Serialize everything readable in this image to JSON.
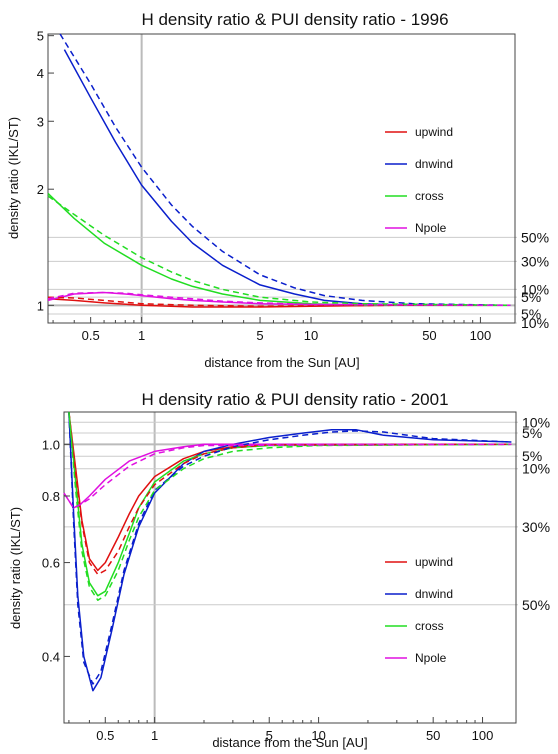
{
  "chart_data": [
    {
      "type": "line",
      "title": "H density ratio & PUI density ratio - 1996",
      "xlabel": "distance from the Sun [AU]",
      "ylabel": "density ratio (IKL/ST)",
      "xscale": "log",
      "yscale": "log",
      "xlim": [
        0.28,
        160
      ],
      "ylim": [
        0.9,
        5.05
      ],
      "xticks": [
        {
          "v": 0.5,
          "label": "0.5"
        },
        {
          "v": 1,
          "label": "1"
        },
        {
          "v": 5,
          "label": "5"
        },
        {
          "v": 10,
          "label": "10"
        },
        {
          "v": 50,
          "label": "50"
        },
        {
          "v": 100,
          "label": "100"
        }
      ],
      "yticks": [
        {
          "v": 1,
          "label": "1"
        },
        {
          "v": 2,
          "label": "2"
        },
        {
          "v": 3,
          "label": "3"
        },
        {
          "v": 4,
          "label": "4"
        },
        {
          "v": 5,
          "label": "5"
        }
      ],
      "right_labels": [
        {
          "v": 1.5,
          "label": "50%"
        },
        {
          "v": 1.3,
          "label": "30%"
        },
        {
          "v": 1.1,
          "label": "10%"
        },
        {
          "v": 1.05,
          "label": "5%"
        },
        {
          "v": 0.95,
          "label": "5%"
        },
        {
          "v": 0.9,
          "label": "10%"
        }
      ],
      "vline": 1,
      "legend_position": "right",
      "series": [
        {
          "name": "upwind",
          "color": "#e01010",
          "style": "solid",
          "points": [
            [
              0.28,
              1.04
            ],
            [
              0.4,
              1.03
            ],
            [
              0.6,
              1.015
            ],
            [
              1,
              1.0
            ],
            [
              2,
              0.99
            ],
            [
              5,
              0.99
            ],
            [
              10,
              0.995
            ],
            [
              30,
              1.0
            ],
            [
              150,
              1.0
            ]
          ]
        },
        {
          "name": "dnwind",
          "color": "#0a1fcc",
          "style": "solid",
          "points": [
            [
              0.35,
              4.6
            ],
            [
              0.5,
              3.45
            ],
            [
              0.7,
              2.65
            ],
            [
              1,
              2.05
            ],
            [
              1.5,
              1.65
            ],
            [
              2,
              1.45
            ],
            [
              3,
              1.27
            ],
            [
              5,
              1.13
            ],
            [
              8,
              1.07
            ],
            [
              12,
              1.03
            ],
            [
              20,
              1.01
            ],
            [
              40,
              1.0
            ],
            [
              150,
              1.0
            ]
          ]
        },
        {
          "name": "cross",
          "color": "#22dd22",
          "style": "solid",
          "points": [
            [
              0.28,
              1.95
            ],
            [
              0.4,
              1.68
            ],
            [
              0.6,
              1.45
            ],
            [
              1,
              1.27
            ],
            [
              1.5,
              1.17
            ],
            [
              2,
              1.12
            ],
            [
              3,
              1.07
            ],
            [
              5,
              1.03
            ],
            [
              10,
              1.01
            ],
            [
              20,
              1.0
            ],
            [
              150,
              1.0
            ]
          ]
        },
        {
          "name": "Npole",
          "color": "#e010e0",
          "style": "solid",
          "points": [
            [
              0.28,
              1.03
            ],
            [
              0.4,
              1.07
            ],
            [
              0.6,
              1.08
            ],
            [
              0.8,
              1.07
            ],
            [
              1,
              1.06
            ],
            [
              1.5,
              1.04
            ],
            [
              2,
              1.03
            ],
            [
              3,
              1.02
            ],
            [
              5,
              1.01
            ],
            [
              10,
              1.005
            ],
            [
              150,
              1.0
            ]
          ]
        },
        {
          "name": "",
          "color": "#e01010",
          "style": "dashed",
          "points": [
            [
              0.28,
              1.05
            ],
            [
              0.4,
              1.045
            ],
            [
              0.6,
              1.03
            ],
            [
              1,
              1.01
            ],
            [
              2,
              1.0
            ],
            [
              5,
              0.995
            ],
            [
              10,
              0.997
            ],
            [
              30,
              1.0
            ],
            [
              150,
              1.0
            ]
          ]
        },
        {
          "name": "",
          "color": "#0a1fcc",
          "style": "dashed",
          "points": [
            [
              0.33,
              5.05
            ],
            [
              0.5,
              3.75
            ],
            [
              0.7,
              2.9
            ],
            [
              1,
              2.28
            ],
            [
              1.5,
              1.82
            ],
            [
              2,
              1.6
            ],
            [
              3,
              1.38
            ],
            [
              5,
              1.2
            ],
            [
              8,
              1.11
            ],
            [
              12,
              1.06
            ],
            [
              20,
              1.03
            ],
            [
              40,
              1.01
            ],
            [
              150,
              1.0
            ]
          ]
        },
        {
          "name": "",
          "color": "#22dd22",
          "style": "dashed",
          "points": [
            [
              0.28,
              1.92
            ],
            [
              0.4,
              1.72
            ],
            [
              0.6,
              1.52
            ],
            [
              1,
              1.33
            ],
            [
              1.5,
              1.22
            ],
            [
              2,
              1.16
            ],
            [
              3,
              1.1
            ],
            [
              5,
              1.05
            ],
            [
              10,
              1.02
            ],
            [
              20,
              1.01
            ],
            [
              150,
              1.0
            ]
          ]
        },
        {
          "name": "",
          "color": "#e010e0",
          "style": "dashed",
          "points": [
            [
              0.28,
              1.04
            ],
            [
              0.4,
              1.075
            ],
            [
              0.6,
              1.08
            ],
            [
              0.8,
              1.075
            ],
            [
              1,
              1.065
            ],
            [
              1.5,
              1.05
            ],
            [
              2,
              1.04
            ],
            [
              3,
              1.025
            ],
            [
              5,
              1.015
            ],
            [
              10,
              1.005
            ],
            [
              150,
              1.0
            ]
          ]
        }
      ]
    },
    {
      "type": "line",
      "title": "H density ratio & PUI density ratio - 2001",
      "xlabel": "distance from the Sun [AU]",
      "ylabel": "density ratio (IKL/ST)",
      "xscale": "log",
      "yscale": "log",
      "xlim": [
        0.28,
        160
      ],
      "ylim": [
        0.3,
        1.15
      ],
      "xticks": [
        {
          "v": 0.5,
          "label": "0.5"
        },
        {
          "v": 1,
          "label": "1"
        },
        {
          "v": 5,
          "label": "5"
        },
        {
          "v": 10,
          "label": "10"
        },
        {
          "v": 50,
          "label": "50"
        },
        {
          "v": 100,
          "label": "100"
        }
      ],
      "yticks": [
        {
          "v": 0.4,
          "label": "0.4"
        },
        {
          "v": 0.6,
          "label": "0.6"
        },
        {
          "v": 0.8,
          "label": "0.8"
        },
        {
          "v": 1.0,
          "label": "1.0"
        }
      ],
      "right_labels": [
        {
          "v": 1.1,
          "label": "10%"
        },
        {
          "v": 1.05,
          "label": "5%"
        },
        {
          "v": 0.95,
          "label": "5%"
        },
        {
          "v": 0.9,
          "label": "10%"
        },
        {
          "v": 0.7,
          "label": "30%"
        },
        {
          "v": 0.5,
          "label": "50%"
        }
      ],
      "vline": 1,
      "legend_position": "right",
      "series": [
        {
          "name": "upwind",
          "color": "#e01010",
          "style": "solid",
          "points": [
            [
              0.3,
              1.15
            ],
            [
              0.33,
              0.9
            ],
            [
              0.36,
              0.72
            ],
            [
              0.4,
              0.61
            ],
            [
              0.45,
              0.58
            ],
            [
              0.5,
              0.6
            ],
            [
              0.6,
              0.67
            ],
            [
              0.7,
              0.74
            ],
            [
              0.8,
              0.8
            ],
            [
              1,
              0.87
            ],
            [
              1.5,
              0.94
            ],
            [
              2,
              0.97
            ],
            [
              3,
              0.99
            ],
            [
              5,
              1.0
            ],
            [
              150,
              1.0
            ]
          ]
        },
        {
          "name": "dnwind",
          "color": "#0a1fcc",
          "style": "solid",
          "points": [
            [
              0.3,
              1.15
            ],
            [
              0.32,
              0.75
            ],
            [
              0.34,
              0.52
            ],
            [
              0.37,
              0.4
            ],
            [
              0.42,
              0.345
            ],
            [
              0.47,
              0.365
            ],
            [
              0.55,
              0.45
            ],
            [
              0.65,
              0.57
            ],
            [
              0.8,
              0.7
            ],
            [
              1,
              0.81
            ],
            [
              1.5,
              0.92
            ],
            [
              2,
              0.97
            ],
            [
              3,
              1.0
            ],
            [
              5,
              1.03
            ],
            [
              8,
              1.05
            ],
            [
              12,
              1.065
            ],
            [
              17,
              1.065
            ],
            [
              25,
              1.04
            ],
            [
              50,
              1.02
            ],
            [
              150,
              1.01
            ]
          ]
        },
        {
          "name": "cross",
          "color": "#22dd22",
          "style": "solid",
          "points": [
            [
              0.3,
              1.15
            ],
            [
              0.33,
              0.85
            ],
            [
              0.36,
              0.65
            ],
            [
              0.4,
              0.55
            ],
            [
              0.45,
              0.52
            ],
            [
              0.5,
              0.53
            ],
            [
              0.6,
              0.6
            ],
            [
              0.7,
              0.68
            ],
            [
              0.8,
              0.76
            ],
            [
              1,
              0.85
            ],
            [
              1.5,
              0.93
            ],
            [
              2,
              0.96
            ],
            [
              3,
              0.985
            ],
            [
              5,
              0.995
            ],
            [
              150,
              1.0
            ]
          ]
        },
        {
          "name": "Npole",
          "color": "#e010e0",
          "style": "solid",
          "points": [
            [
              0.28,
              0.81
            ],
            [
              0.32,
              0.76
            ],
            [
              0.35,
              0.77
            ],
            [
              0.4,
              0.8
            ],
            [
              0.5,
              0.86
            ],
            [
              0.7,
              0.93
            ],
            [
              1,
              0.97
            ],
            [
              1.5,
              0.99
            ],
            [
              2,
              1.0
            ],
            [
              150,
              1.0
            ]
          ]
        },
        {
          "name": "",
          "color": "#e01010",
          "style": "dashed",
          "points": [
            [
              0.3,
              1.15
            ],
            [
              0.33,
              0.88
            ],
            [
              0.36,
              0.71
            ],
            [
              0.4,
              0.6
            ],
            [
              0.45,
              0.57
            ],
            [
              0.5,
              0.58
            ],
            [
              0.6,
              0.63
            ],
            [
              0.7,
              0.7
            ],
            [
              0.8,
              0.76
            ],
            [
              1,
              0.84
            ],
            [
              1.5,
              0.92
            ],
            [
              2,
              0.96
            ],
            [
              3,
              0.985
            ],
            [
              5,
              0.998
            ],
            [
              150,
              1.0
            ]
          ]
        },
        {
          "name": "",
          "color": "#0a1fcc",
          "style": "dashed",
          "points": [
            [
              0.3,
              1.15
            ],
            [
              0.32,
              0.72
            ],
            [
              0.34,
              0.5
            ],
            [
              0.37,
              0.39
            ],
            [
              0.42,
              0.355
            ],
            [
              0.47,
              0.375
            ],
            [
              0.55,
              0.46
            ],
            [
              0.65,
              0.58
            ],
            [
              0.8,
              0.71
            ],
            [
              1,
              0.82
            ],
            [
              1.5,
              0.91
            ],
            [
              2,
              0.95
            ],
            [
              3,
              0.99
            ],
            [
              5,
              1.02
            ],
            [
              8,
              1.04
            ],
            [
              12,
              1.055
            ],
            [
              17,
              1.06
            ],
            [
              25,
              1.055
            ],
            [
              35,
              1.04
            ],
            [
              50,
              1.025
            ],
            [
              150,
              1.01
            ]
          ]
        },
        {
          "name": "",
          "color": "#22dd22",
          "style": "dashed",
          "points": [
            [
              0.3,
              1.15
            ],
            [
              0.33,
              0.82
            ],
            [
              0.36,
              0.63
            ],
            [
              0.4,
              0.54
            ],
            [
              0.45,
              0.51
            ],
            [
              0.5,
              0.52
            ],
            [
              0.6,
              0.58
            ],
            [
              0.7,
              0.66
            ],
            [
              0.8,
              0.73
            ],
            [
              1,
              0.82
            ],
            [
              1.5,
              0.9
            ],
            [
              2,
              0.94
            ],
            [
              3,
              0.97
            ],
            [
              5,
              0.985
            ],
            [
              10,
              0.995
            ],
            [
              150,
              1.0
            ]
          ]
        },
        {
          "name": "",
          "color": "#e010e0",
          "style": "dashed",
          "points": [
            [
              0.28,
              0.81
            ],
            [
              0.32,
              0.76
            ],
            [
              0.35,
              0.77
            ],
            [
              0.4,
              0.79
            ],
            [
              0.5,
              0.84
            ],
            [
              0.7,
              0.91
            ],
            [
              1,
              0.96
            ],
            [
              1.5,
              0.985
            ],
            [
              2,
              0.995
            ],
            [
              150,
              1.0
            ]
          ]
        }
      ]
    }
  ]
}
